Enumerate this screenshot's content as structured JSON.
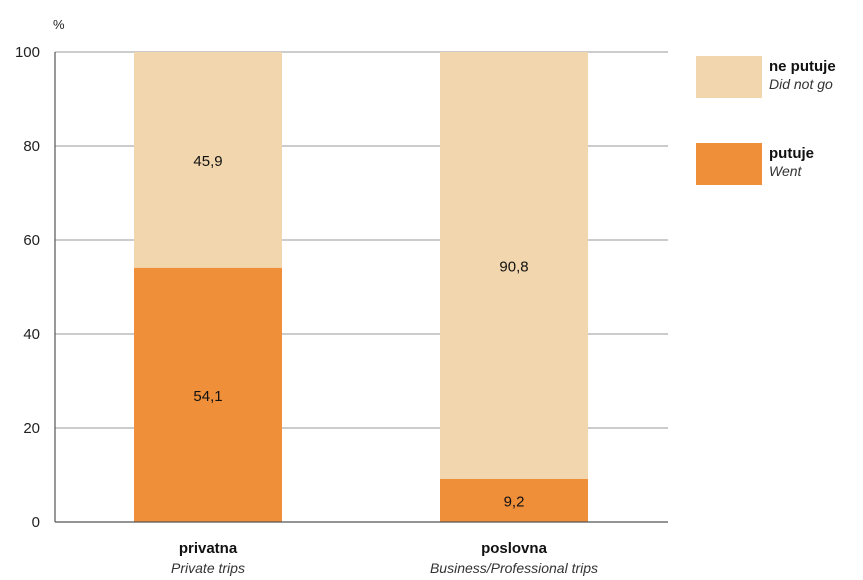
{
  "chart_data": {
    "type": "bar",
    "stacked": true,
    "y_unit": "%",
    "ylim": [
      0,
      100
    ],
    "yticks": [
      0,
      20,
      40,
      60,
      80,
      100
    ],
    "grid": true,
    "legend_position": "top-right",
    "categories": [
      "privatna",
      "poslovna"
    ],
    "categories_sub": [
      "Private trips",
      "Business/Professional trips"
    ],
    "series": [
      {
        "name": "putuje",
        "name_sub": "Went",
        "color": "#ef8f3a",
        "values": [
          54.1,
          9.2
        ],
        "value_labels": [
          "54,1",
          "9,2"
        ]
      },
      {
        "name": "ne putuje",
        "name_sub": "Did not go",
        "color": "#f2d6ad",
        "values": [
          45.9,
          90.8
        ],
        "value_labels": [
          "45,9",
          "90,8"
        ]
      }
    ]
  }
}
